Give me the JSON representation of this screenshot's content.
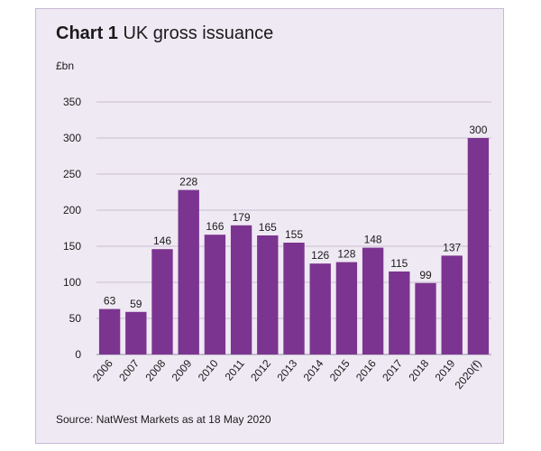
{
  "chart_data": {
    "type": "bar",
    "title_bold": "Chart 1",
    "title_rest": "UK gross issuance",
    "ylabel": "£bn",
    "categories": [
      "2006",
      "2007",
      "2008",
      "2009",
      "2010",
      "2011",
      "2012",
      "2013",
      "2014",
      "2015",
      "2016",
      "2017",
      "2018",
      "2019",
      "2020(f)"
    ],
    "values": [
      63,
      59,
      146,
      228,
      166,
      179,
      165,
      155,
      126,
      128,
      148,
      115,
      99,
      137,
      300
    ],
    "yticks": [
      0,
      50,
      100,
      150,
      200,
      250,
      300,
      350
    ],
    "ylim": [
      0,
      350
    ],
    "grid": true,
    "bar_color": "#7b3590",
    "grid_color": "#c8bfd2",
    "source": "Source: NatWest Markets as at 18 May 2020"
  }
}
